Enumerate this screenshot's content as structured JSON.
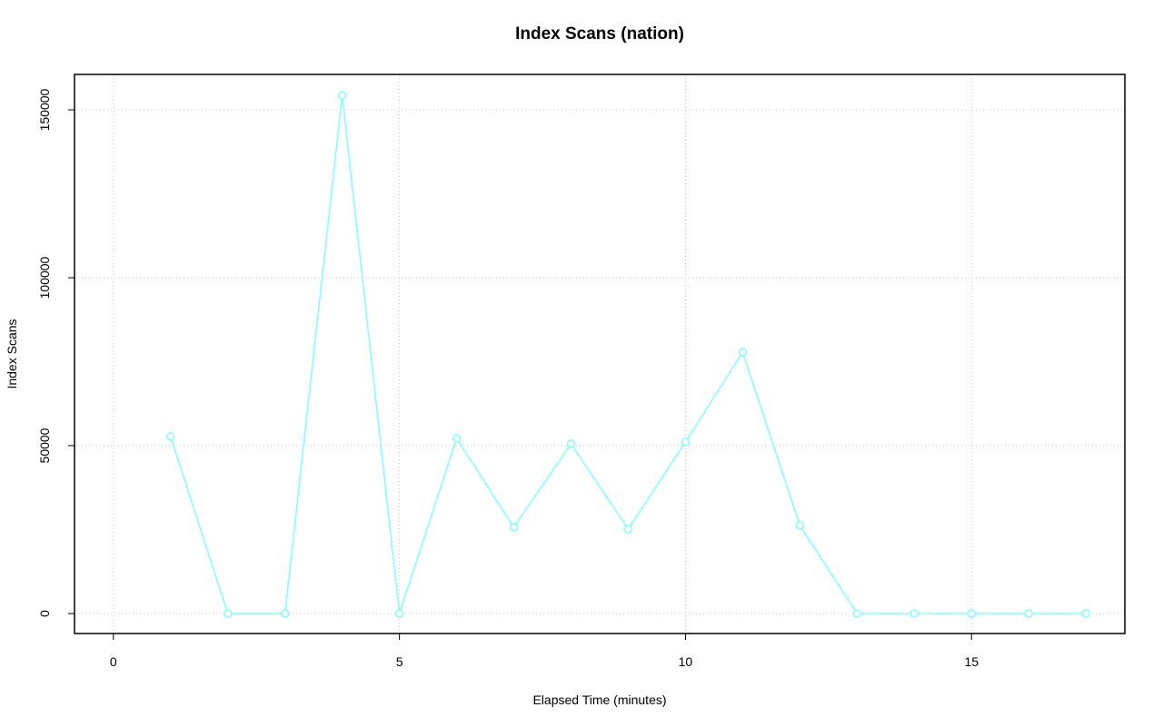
{
  "chart_data": {
    "type": "line",
    "title": "Index Scans (nation)",
    "x_label": "Elapsed Time (minutes)",
    "y_label": "Index Scans",
    "x": [
      1,
      2,
      3,
      4,
      5,
      6,
      7,
      8,
      9,
      10,
      11,
      12,
      13,
      14,
      15,
      16,
      17
    ],
    "series": [
      {
        "name": "Index Scans",
        "color": "#80ffff",
        "values": [
          52700,
          0,
          0,
          154300,
          0,
          52160,
          25680,
          50540,
          25140,
          51080,
          77840,
          26220,
          0,
          0,
          0,
          0,
          0
        ]
      }
    ],
    "xlim": [
      -0.68,
      17.68
    ],
    "ylim": [
      -5950,
      160550
    ],
    "xticks": [
      0,
      5,
      10,
      15
    ],
    "yticks": [
      0,
      50000,
      100000,
      150000
    ],
    "grid": true
  }
}
